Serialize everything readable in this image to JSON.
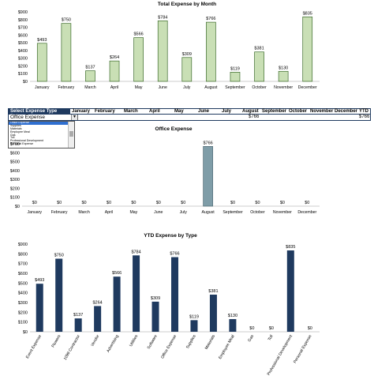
{
  "colors": {
    "green_bar": "#c9dfb5",
    "green_edge": "#3c6b2b",
    "grey_bar": "#7f9da8",
    "navy_bar": "#1f3a5f"
  },
  "chart_data": [
    {
      "type": "bar",
      "title": "Total Expense by Month",
      "categories": [
        "January",
        "February",
        "March",
        "April",
        "May",
        "June",
        "July",
        "August",
        "September",
        "October",
        "November",
        "December"
      ],
      "values": [
        493,
        750,
        137,
        264,
        566,
        784,
        309,
        766,
        119,
        381,
        130,
        835
      ],
      "value_labels": [
        "$493",
        "$750",
        "$137",
        "$264",
        "$566",
        "$784",
        "$309",
        "$766",
        "$119",
        "$381",
        "$130",
        "$835"
      ],
      "y_ticks": [
        "$0",
        "$100",
        "$200",
        "$300",
        "$400",
        "$500",
        "$600",
        "$700",
        "$800",
        "$900"
      ],
      "ylim": [
        0,
        900
      ]
    },
    {
      "type": "bar",
      "title": "Office Expense",
      "categories": [
        "January",
        "February",
        "March",
        "April",
        "May",
        "June",
        "July",
        "August",
        "September",
        "October",
        "November",
        "December"
      ],
      "values": [
        0,
        0,
        0,
        0,
        0,
        0,
        0,
        766,
        0,
        0,
        0,
        0
      ],
      "value_labels": [
        "$0",
        "$0",
        "$0",
        "$0",
        "$0",
        "$0",
        "$0",
        "$766",
        "$0",
        "$0",
        "$0",
        "$0"
      ],
      "y_ticks": [
        "$0",
        "$100",
        "$200",
        "$300",
        "$400",
        "$500",
        "$600",
        "$700"
      ],
      "ylim": [
        0,
        800
      ]
    },
    {
      "type": "bar",
      "title": "YTD Expense by Type",
      "categories": [
        "Event Expense",
        "Flowers",
        "1099 Contractor",
        "Vendor",
        "Advertising",
        "Utilities",
        "Software",
        "Office Expense",
        "Supplies",
        "Materials",
        "Employee Meal",
        "Gas",
        "Toll",
        "Professional Development",
        "Personal Expense"
      ],
      "values": [
        493,
        750,
        137,
        264,
        566,
        784,
        309,
        766,
        119,
        381,
        130,
        0,
        0,
        835,
        0
      ],
      "value_labels": [
        "$493",
        "$750",
        "$137",
        "$264",
        "$566",
        "$784",
        "$309",
        "$766",
        "$119",
        "$381",
        "$130",
        "$0",
        "$0",
        "$835",
        "$0"
      ],
      "y_ticks": [
        "$0",
        "$100",
        "$200",
        "$300",
        "$400",
        "$500",
        "$600",
        "$700",
        "$800",
        "$900"
      ],
      "ylim": [
        0,
        900
      ]
    }
  ],
  "table": {
    "select_header": "Select Expense Type Below",
    "month_headers": [
      "January",
      "February",
      "March",
      "April",
      "May",
      "June",
      "July",
      "August",
      "September",
      "October",
      "November",
      "December"
    ],
    "ytd_header": "YTD",
    "selected_type": "Office Expense",
    "august_value": "$766",
    "ytd_value": "$766"
  },
  "dropdown_options": [
    "Office Expense",
    "Supplies",
    "Materials",
    "Employee Meal",
    "Gas",
    "Toll",
    "Professional Development",
    "Personal Expense"
  ],
  "dropdown_arrow": "▼"
}
